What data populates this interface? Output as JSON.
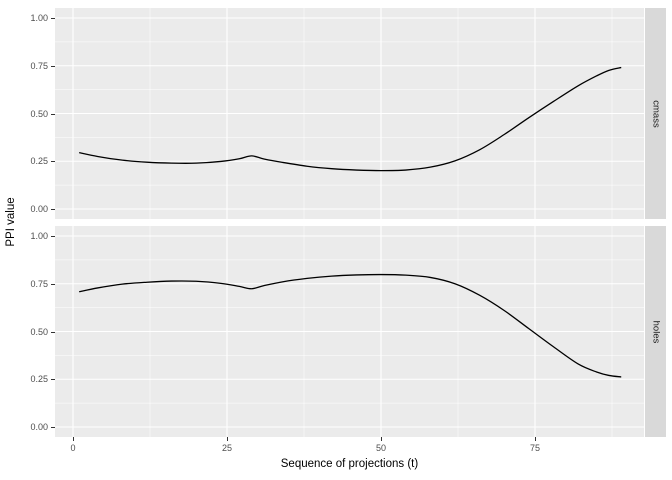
{
  "figure": {
    "background": "#FFFFFF",
    "panel_bg": "#EBEBEB",
    "grid_color": "#FFFFFF",
    "strip_bg": "#D9D9D9",
    "strip_text_color": "#1A1A1A",
    "axis_text_color": "#4D4D4D",
    "axis_title_color": "#000000",
    "line_color": "#000000"
  },
  "axes": {
    "x_label": "Sequence of projections (t)",
    "y_label": "PPI value",
    "x_ticks": [
      "0",
      "25",
      "50",
      "75"
    ],
    "y_ticks": [
      "1.00",
      "0.75",
      "0.50",
      "0.25",
      "0.00"
    ]
  },
  "chart_data": {
    "type": "line",
    "title": "",
    "xlabel": "Sequence of projections (t)",
    "ylabel": "PPI value",
    "xlim": [
      -3,
      93
    ],
    "ylim": [
      -0.05,
      1.05
    ],
    "x_tick_values": [
      0,
      25,
      50,
      75
    ],
    "x_minor_ticks": [
      12.5,
      37.5,
      62.5,
      87.5
    ],
    "y_tick_values": [
      0,
      0.25,
      0.5,
      0.75,
      1.0
    ],
    "y_minor_ticks": [
      0.125,
      0.375,
      0.625,
      0.875
    ],
    "grid": "major-and-minor",
    "legend_position": "none",
    "facet_layout": "rows-right-strips",
    "facets": [
      {
        "label": "cmass",
        "x": [
          1,
          4,
          8,
          12,
          16,
          20,
          24,
          27,
          29,
          31,
          34,
          38,
          42,
          46,
          50,
          54,
          58,
          62,
          66,
          70,
          74,
          78,
          82,
          85,
          87,
          89
        ],
        "y": [
          0.295,
          0.275,
          0.256,
          0.245,
          0.24,
          0.24,
          0.249,
          0.263,
          0.278,
          0.262,
          0.244,
          0.224,
          0.211,
          0.204,
          0.201,
          0.204,
          0.219,
          0.252,
          0.31,
          0.39,
          0.478,
          0.563,
          0.645,
          0.697,
          0.726,
          0.741
        ]
      },
      {
        "label": "holes",
        "x": [
          1,
          4,
          8,
          12,
          16,
          20,
          24,
          27,
          29,
          31,
          34,
          38,
          42,
          46,
          50,
          54,
          58,
          62,
          66,
          70,
          74,
          78,
          82,
          85,
          87,
          89
        ],
        "y": [
          0.708,
          0.728,
          0.748,
          0.758,
          0.764,
          0.763,
          0.752,
          0.736,
          0.724,
          0.74,
          0.76,
          0.778,
          0.79,
          0.796,
          0.798,
          0.795,
          0.783,
          0.75,
          0.69,
          0.61,
          0.515,
          0.42,
          0.33,
          0.288,
          0.27,
          0.262
        ]
      }
    ]
  }
}
